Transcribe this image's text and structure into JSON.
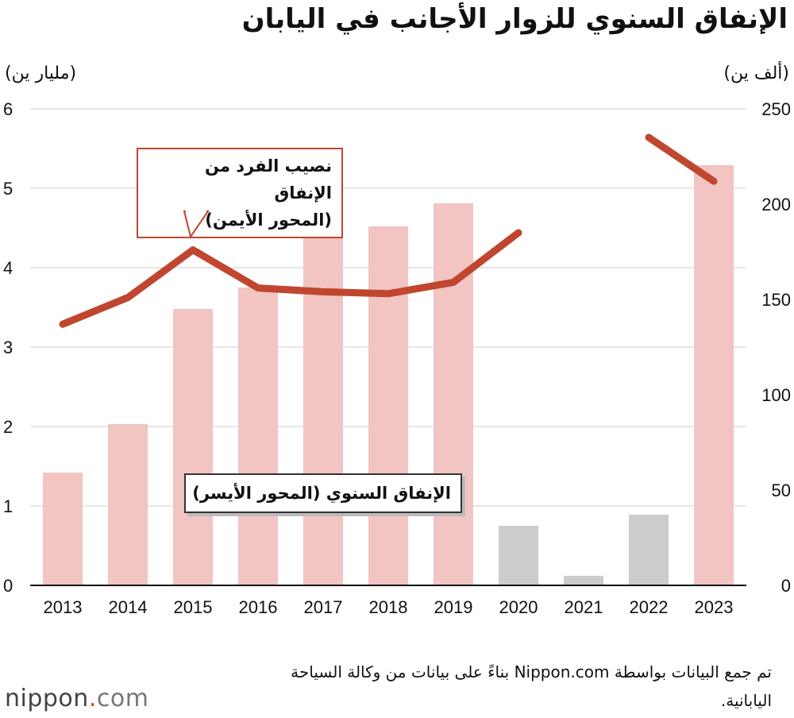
{
  "title": "الإنفاق السنوي للزوار الأجانب في اليابان",
  "units": {
    "left": "(مليار ين)",
    "right": "(ألف ين)"
  },
  "callouts": {
    "line_label_1": "نصيب الفرد من الإنفاق",
    "line_label_2": "(المحور الأيمن)",
    "bar_label": "الإنفاق السنوي (المحور الأيسر)"
  },
  "source": "تم جمع البيانات بواسطة Nippon.com بناءً على بيانات من وكالة السياحة اليابانية.",
  "logo": {
    "main": "nippon",
    "dot": ".",
    "com": "com"
  },
  "colors": {
    "bar": "#f2c4c2",
    "bar_muted": "#cccccc",
    "line": "#c0462f",
    "axis": "#111111"
  },
  "chart_data": {
    "type": "bar",
    "categories": [
      "2013",
      "2014",
      "2015",
      "2016",
      "2017",
      "2018",
      "2019",
      "2020",
      "2021",
      "2022",
      "2023"
    ],
    "series": [
      {
        "name": "الإنفاق السنوي (المحور الأيسر)",
        "axis": "left",
        "type": "bar",
        "values": [
          1.42,
          2.03,
          3.48,
          3.75,
          4.42,
          4.52,
          4.81,
          0.75,
          0.12,
          0.89,
          5.29
        ],
        "muted_categories": [
          "2020",
          "2021",
          "2022"
        ]
      },
      {
        "name": "نصيب الفرد من الإنفاق (المحور الأيمن)",
        "axis": "right",
        "type": "line",
        "values": [
          137,
          151,
          176,
          156,
          154,
          153,
          159,
          185,
          null,
          235,
          212
        ]
      }
    ],
    "y_left": {
      "label": "(مليار ين)",
      "lim": [
        0,
        6
      ],
      "ticks": [
        0,
        1,
        2,
        3,
        4,
        5,
        6
      ]
    },
    "y_right": {
      "label": "(ألف ين)",
      "lim": [
        0,
        250
      ],
      "ticks": [
        0,
        50,
        100,
        150,
        200,
        250
      ]
    },
    "grid": true
  }
}
